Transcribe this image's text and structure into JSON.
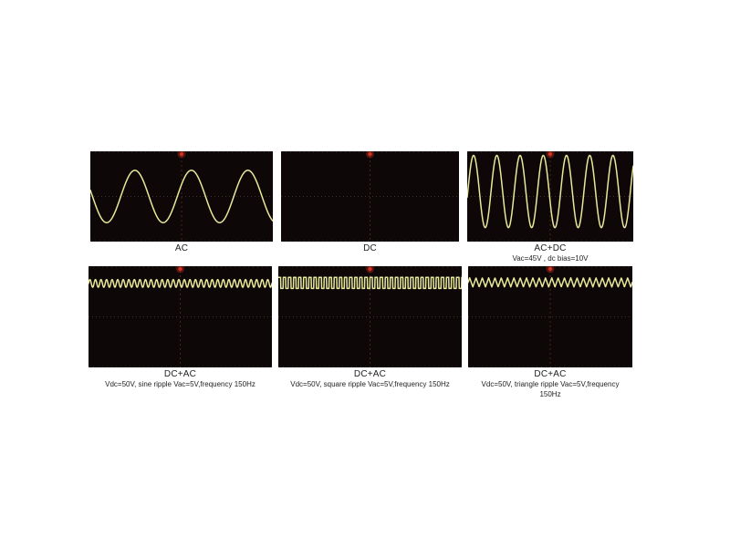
{
  "figure": {
    "background": "#ffffff"
  },
  "colors": {
    "screen_bg": "#0d0807",
    "trace": "#e8e89a",
    "grid_line": "#3f3a32",
    "edge_dots": "#2e2a24",
    "center_vline": "#5a241c",
    "marker": "#d92f1f",
    "marker_glow": "#8a2418",
    "label_text": "#1f1f1f"
  },
  "panels": [
    {
      "label": "AC",
      "caption_line1": "",
      "caption_line2": ""
    },
    {
      "label": "DC",
      "caption_line1": "",
      "caption_line2": ""
    },
    {
      "label": "AC+DC",
      "caption_line1": "Vac=45V , dc bias=10V",
      "caption_line2": ""
    },
    {
      "label": "DC+AC",
      "caption_line1": "Vdc=50V, sine ripple Vac=5V,frequency 150Hz",
      "caption_line2": ""
    },
    {
      "label": "DC+AC",
      "caption_line1": "Vdc=50V, square ripple Vac=5V,frequency 150Hz",
      "caption_line2": ""
    },
    {
      "label": "DC+AC",
      "caption_line1": "Vdc=50V, triangle ripple Vac=5V,frequency",
      "caption_line2": "150Hz"
    }
  ],
  "chart_data": [
    {
      "type": "line",
      "title": "AC",
      "waveform": "sine",
      "signal": {
        "description": "pure AC sine wave, ~3 cycles visible on screen"
      },
      "render": {
        "cycles": 3.23,
        "phase": 2.9,
        "center": 0.5,
        "amplitude": 0.29
      }
    },
    {
      "type": "line",
      "title": "DC",
      "waveform": "none",
      "signal": {
        "description": "DC only - no trace visible on screen (level off-screen)"
      },
      "render": {
        "cycles": 0,
        "phase": 0,
        "center": 0.5,
        "amplitude": 0
      }
    },
    {
      "type": "line",
      "title": "AC+DC",
      "waveform": "sine",
      "signal": {
        "vac": "45V",
        "dc_bias": "10V",
        "description": "large sine, ~7 cycles visible"
      },
      "render": {
        "cycles": 7.15,
        "phase": -0.16,
        "center": 0.445,
        "amplitude": 0.4
      }
    },
    {
      "type": "line",
      "title": "DC+AC",
      "waveform": "sine",
      "signal": {
        "vdc": "50V",
        "ripple": "sine",
        "vac": "5V",
        "frequency": "150Hz",
        "description": "small sine ripple riding near top of screen"
      },
      "render": {
        "cycles": 33,
        "phase": 0,
        "center": 0.17,
        "amplitude": 0.038
      }
    },
    {
      "type": "line",
      "title": "DC+AC",
      "waveform": "square",
      "signal": {
        "vdc": "50V",
        "ripple": "square",
        "vac": "5V",
        "frequency": "150Hz",
        "description": "small square ripple riding near top of screen"
      },
      "render": {
        "cycles": 36,
        "phase": 0.2,
        "center": 0.165,
        "amplitude": 0.055
      }
    },
    {
      "type": "line",
      "title": "DC+AC",
      "waveform": "triangle",
      "signal": {
        "vdc": "50V",
        "ripple": "triangle",
        "vac": "5V",
        "frequency": "150Hz",
        "description": "small triangle ripple riding near top of screen"
      },
      "render": {
        "cycles": 26,
        "phase": 0,
        "center": 0.16,
        "amplitude": 0.045
      }
    }
  ]
}
